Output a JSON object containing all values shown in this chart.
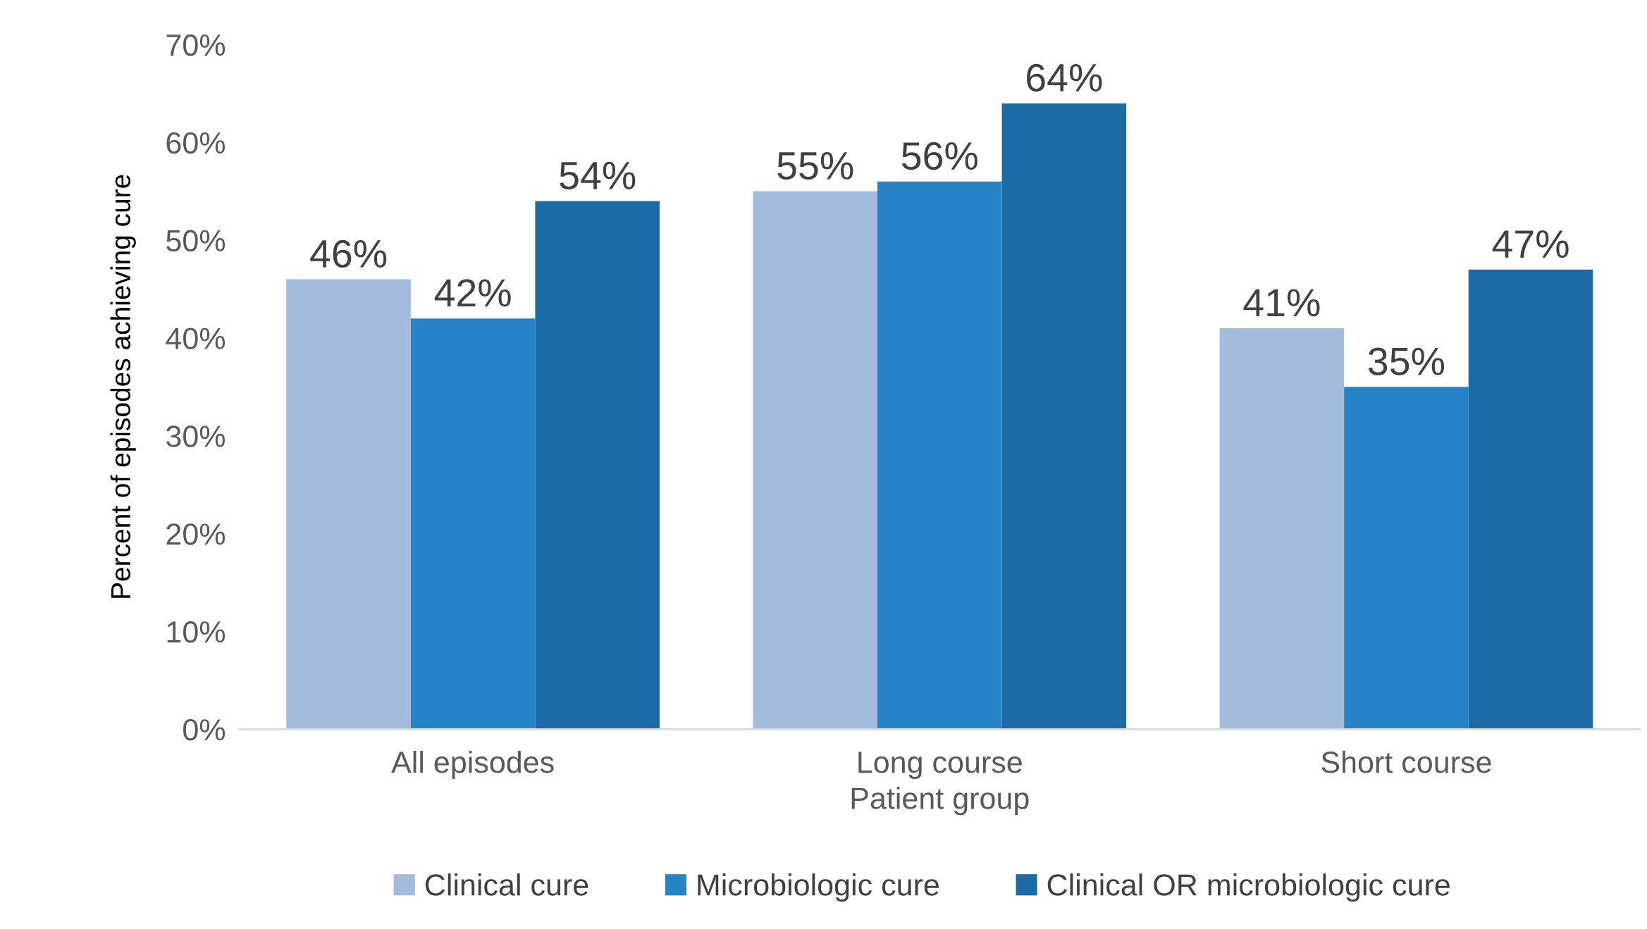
{
  "chart_data": {
    "type": "bar",
    "xlabel": "Patient group",
    "ylabel": "Percent of episodes achieving cure",
    "categories": [
      "All episodes",
      "Long course",
      "Short course"
    ],
    "series": [
      {
        "name": "Clinical cure",
        "color": "#a3bbdc",
        "values": [
          46,
          55,
          41
        ],
        "value_labels": [
          "46%",
          "55%",
          "41%"
        ]
      },
      {
        "name": "Microbiologic cure",
        "color": "#2683c6",
        "values": [
          42,
          56,
          35
        ],
        "value_labels": [
          "42%",
          "56%",
          "35%"
        ]
      },
      {
        "name": "Clinical OR microbiologic cure",
        "color": "#1d6ba5",
        "values": [
          54,
          64,
          47
        ],
        "value_labels": [
          "54%",
          "64%",
          "47%"
        ]
      }
    ],
    "ylim": [
      0,
      70
    ],
    "yticks": [
      {
        "value": 0,
        "label": "0%"
      },
      {
        "value": 10,
        "label": "10%"
      },
      {
        "value": 20,
        "label": "20%"
      },
      {
        "value": 30,
        "label": "30%"
      },
      {
        "value": 40,
        "label": "40%"
      },
      {
        "value": 50,
        "label": "50%"
      },
      {
        "value": 60,
        "label": "60%"
      },
      {
        "value": 70,
        "label": "70%"
      }
    ],
    "grid": false,
    "legend": "bottom"
  }
}
